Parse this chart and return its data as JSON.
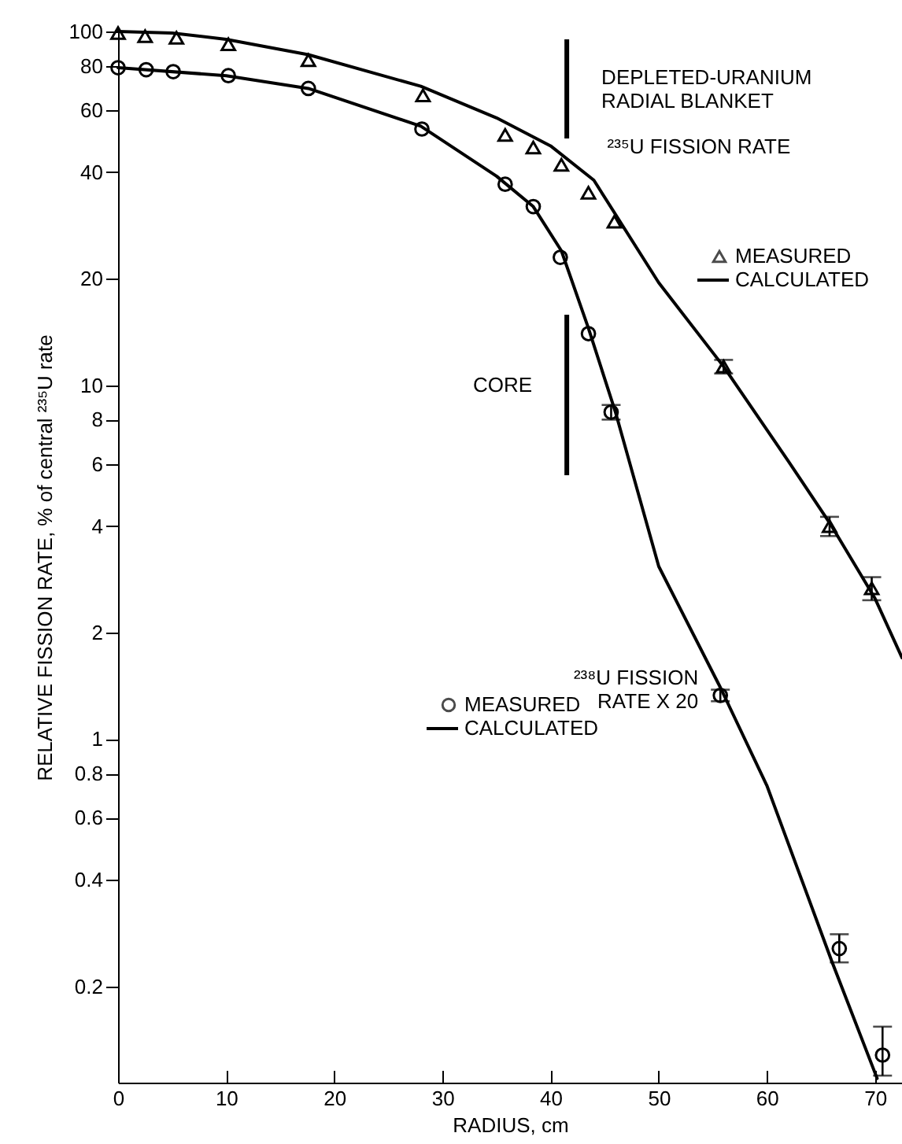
{
  "chart_data": {
    "type": "line",
    "xlabel": "RADIUS, cm",
    "ylabel": "RELATIVE FISSION RATE, % of central ²³⁵U rate",
    "log": "y",
    "xlim": [
      0,
      72.5
    ],
    "ylim": [
      0.107,
      100
    ],
    "xticks": [
      0,
      10,
      20,
      30,
      40,
      50,
      60,
      70
    ],
    "yticks": [
      0.2,
      0.4,
      0.6,
      0.8,
      1,
      2,
      4,
      6,
      8,
      10,
      20,
      40,
      60,
      80,
      100
    ],
    "legend": "right",
    "grid": false,
    "line_style": "solid",
    "series": [
      {
        "name": "MEASURED",
        "type": "scatter",
        "marker": "triangle",
        "color": "#000000",
        "x": [
          0,
          2.5,
          5.4,
          10.2,
          17.6,
          28.2,
          35.8,
          38.4,
          41.0,
          43.5,
          45.9,
          56.0,
          65.8,
          69.7
        ],
        "values": [
          99,
          97,
          96,
          92,
          83,
          66,
          51,
          47,
          42,
          35,
          29,
          11.3,
          4.0,
          2.67
        ],
        "errors": [
          null,
          null,
          null,
          null,
          null,
          null,
          null,
          null,
          null,
          null,
          null,
          0.5,
          0.25,
          0.2
        ]
      },
      {
        "name": "CALCULATED",
        "color": "#000000",
        "x": [
          0,
          5,
          10,
          17.6,
          28,
          35,
          40,
          44,
          50,
          56,
          62,
          66,
          70,
          72.5
        ],
        "values": [
          100,
          99,
          95,
          86,
          70,
          57,
          47.5,
          38,
          19.5,
          11.3,
          6.1,
          4.0,
          2.5,
          1.7
        ]
      },
      {
        "name": "MEASURED",
        "type": "scatter",
        "marker": "circle",
        "color": "#000000",
        "x": [
          0,
          2.6,
          5.1,
          10.2,
          17.6,
          28.1,
          35.8,
          38.4,
          40.9,
          43.5,
          45.6,
          55.7,
          66.7,
          70.7
        ],
        "values": [
          79,
          78,
          77,
          75,
          69,
          53,
          37,
          32,
          23,
          14,
          8.4,
          1.33,
          0.256,
          0.128
        ],
        "errors": [
          null,
          null,
          null,
          null,
          null,
          null,
          null,
          null,
          null,
          null,
          0.4,
          0.05,
          [
            0.234,
            0.281
          ],
          [
            0.112,
            0.154
          ]
        ]
      },
      {
        "name": "CALCULATED",
        "color": "#000000",
        "x": [
          0,
          10,
          17.6,
          28,
          35,
          38.4,
          41,
          43.5,
          46,
          50,
          55.7,
          60,
          66,
          70.2
        ],
        "values": [
          79,
          75,
          69,
          54,
          39,
          32,
          24,
          14.5,
          8.4,
          3.08,
          1.4,
          0.74,
          0.236,
          0.11
        ]
      }
    ],
    "ref_lines": [
      {
        "axis": "x",
        "value": 41.5,
        "label": "CORE"
      }
    ],
    "annotations": [
      {
        "text": "DEPLETED-URANIUM RADIAL BLANKET",
        "x": 41.5,
        "y": 68
      },
      {
        "text": "²³⁵U FISSION RATE",
        "x": 43.5,
        "y": 40
      },
      {
        "text": "²³⁸U FISSION RATE X 20",
        "x": 55.7,
        "y": 1.4
      }
    ]
  }
}
